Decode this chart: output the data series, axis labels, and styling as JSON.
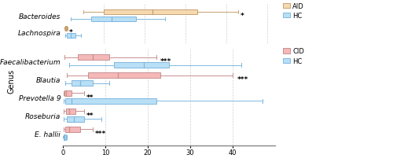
{
  "top_panel": {
    "genera": [
      "Bacteroides",
      "Lachnospira"
    ],
    "AID": {
      "Bacteroides": {
        "whislo": 5,
        "q1": 10,
        "med": 22,
        "q3": 33,
        "whishi": 43,
        "fliers": []
      },
      "Lachnospira": {
        "whislo": 0.3,
        "q1": 0.5,
        "med": 0.7,
        "q3": 1.0,
        "whishi": 1.2,
        "fliers": []
      }
    },
    "HC": {
      "Bacteroides": {
        "whislo": 2,
        "q1": 7,
        "med": 12,
        "q3": 18,
        "whishi": 25,
        "fliers": []
      },
      "Lachnospira": {
        "whislo": 0.5,
        "q1": 1.0,
        "med": 2.0,
        "q3": 3.0,
        "whishi": 4.5,
        "fliers": []
      }
    },
    "sig": {
      "Bacteroides": "*",
      "Lachnospira": "*"
    },
    "sig_x": {
      "Bacteroides": 43.5,
      "Lachnospira": 1.5
    },
    "xlim": [
      0,
      52
    ],
    "xticks": [
      0,
      10,
      20,
      30,
      40,
      50
    ]
  },
  "bottom_panel": {
    "genera": [
      "Faecalibacterium",
      "Blautia",
      "Prevotella 9",
      "Roseburia",
      "E. hallii"
    ],
    "CID": {
      "Faecalibacterium": {
        "whislo": 0.3,
        "q1": 3.5,
        "med": 7,
        "q3": 11,
        "whishi": 22,
        "fliers": []
      },
      "Blautia": {
        "whislo": 1,
        "q1": 6,
        "med": 13,
        "q3": 23,
        "whishi": 40,
        "fliers": []
      },
      "Prevotella 9": {
        "whislo": 0.1,
        "q1": 0.3,
        "med": 0.8,
        "q3": 2.0,
        "whishi": 5,
        "fliers": []
      },
      "Roseburia": {
        "whislo": 0.2,
        "q1": 0.8,
        "med": 1.5,
        "q3": 3.0,
        "whishi": 5,
        "fliers": []
      },
      "E. hallii": {
        "whislo": 0.1,
        "q1": 0.5,
        "med": 1.5,
        "q3": 4.0,
        "whishi": 7,
        "fliers": []
      }
    },
    "HC": {
      "Faecalibacterium": {
        "whislo": 1.5,
        "q1": 12,
        "med": 19,
        "q3": 25,
        "whishi": 42,
        "fliers": []
      },
      "Blautia": {
        "whislo": 0.5,
        "q1": 2,
        "med": 4,
        "q3": 7,
        "whishi": 11,
        "fliers": []
      },
      "Prevotella 9": {
        "whislo": 0.2,
        "q1": 0.5,
        "med": 2,
        "q3": 22,
        "whishi": 47,
        "fliers": []
      },
      "Roseburia": {
        "whislo": 0.2,
        "q1": 1.0,
        "med": 2.5,
        "q3": 5,
        "whishi": 9,
        "fliers": []
      },
      "E. hallii": {
        "whislo": 0.1,
        "q1": 0.2,
        "med": 0.4,
        "q3": 0.7,
        "whishi": 1.0,
        "fliers": [
          0.05
        ]
      }
    },
    "sig": {
      "Faecalibacterium": "***",
      "Blautia": "***",
      "Prevotella 9": "**",
      "Roseburia": "**",
      "E. hallii": "***"
    },
    "sig_x": {
      "Faecalibacterium": 23,
      "Blautia": 41,
      "Prevotella 9": 5.5,
      "Roseburia": 5.5,
      "E. hallii": 7.5
    },
    "xlim": [
      0,
      50
    ],
    "xticks": [
      0,
      10,
      20,
      30,
      40
    ]
  },
  "aid_color": "#f5d9b0",
  "aid_edge": "#c8a070",
  "cid_color": "#f5b8b8",
  "cid_edge": "#c89090",
  "hc_color": "#b8dff5",
  "hc_edge": "#80b8e0",
  "ylabel": "Genus",
  "background": "#ffffff",
  "grid_color": "#d0d0d0",
  "sig_fontsize": 6.5,
  "label_fontsize": 6.5,
  "tick_fontsize": 6
}
